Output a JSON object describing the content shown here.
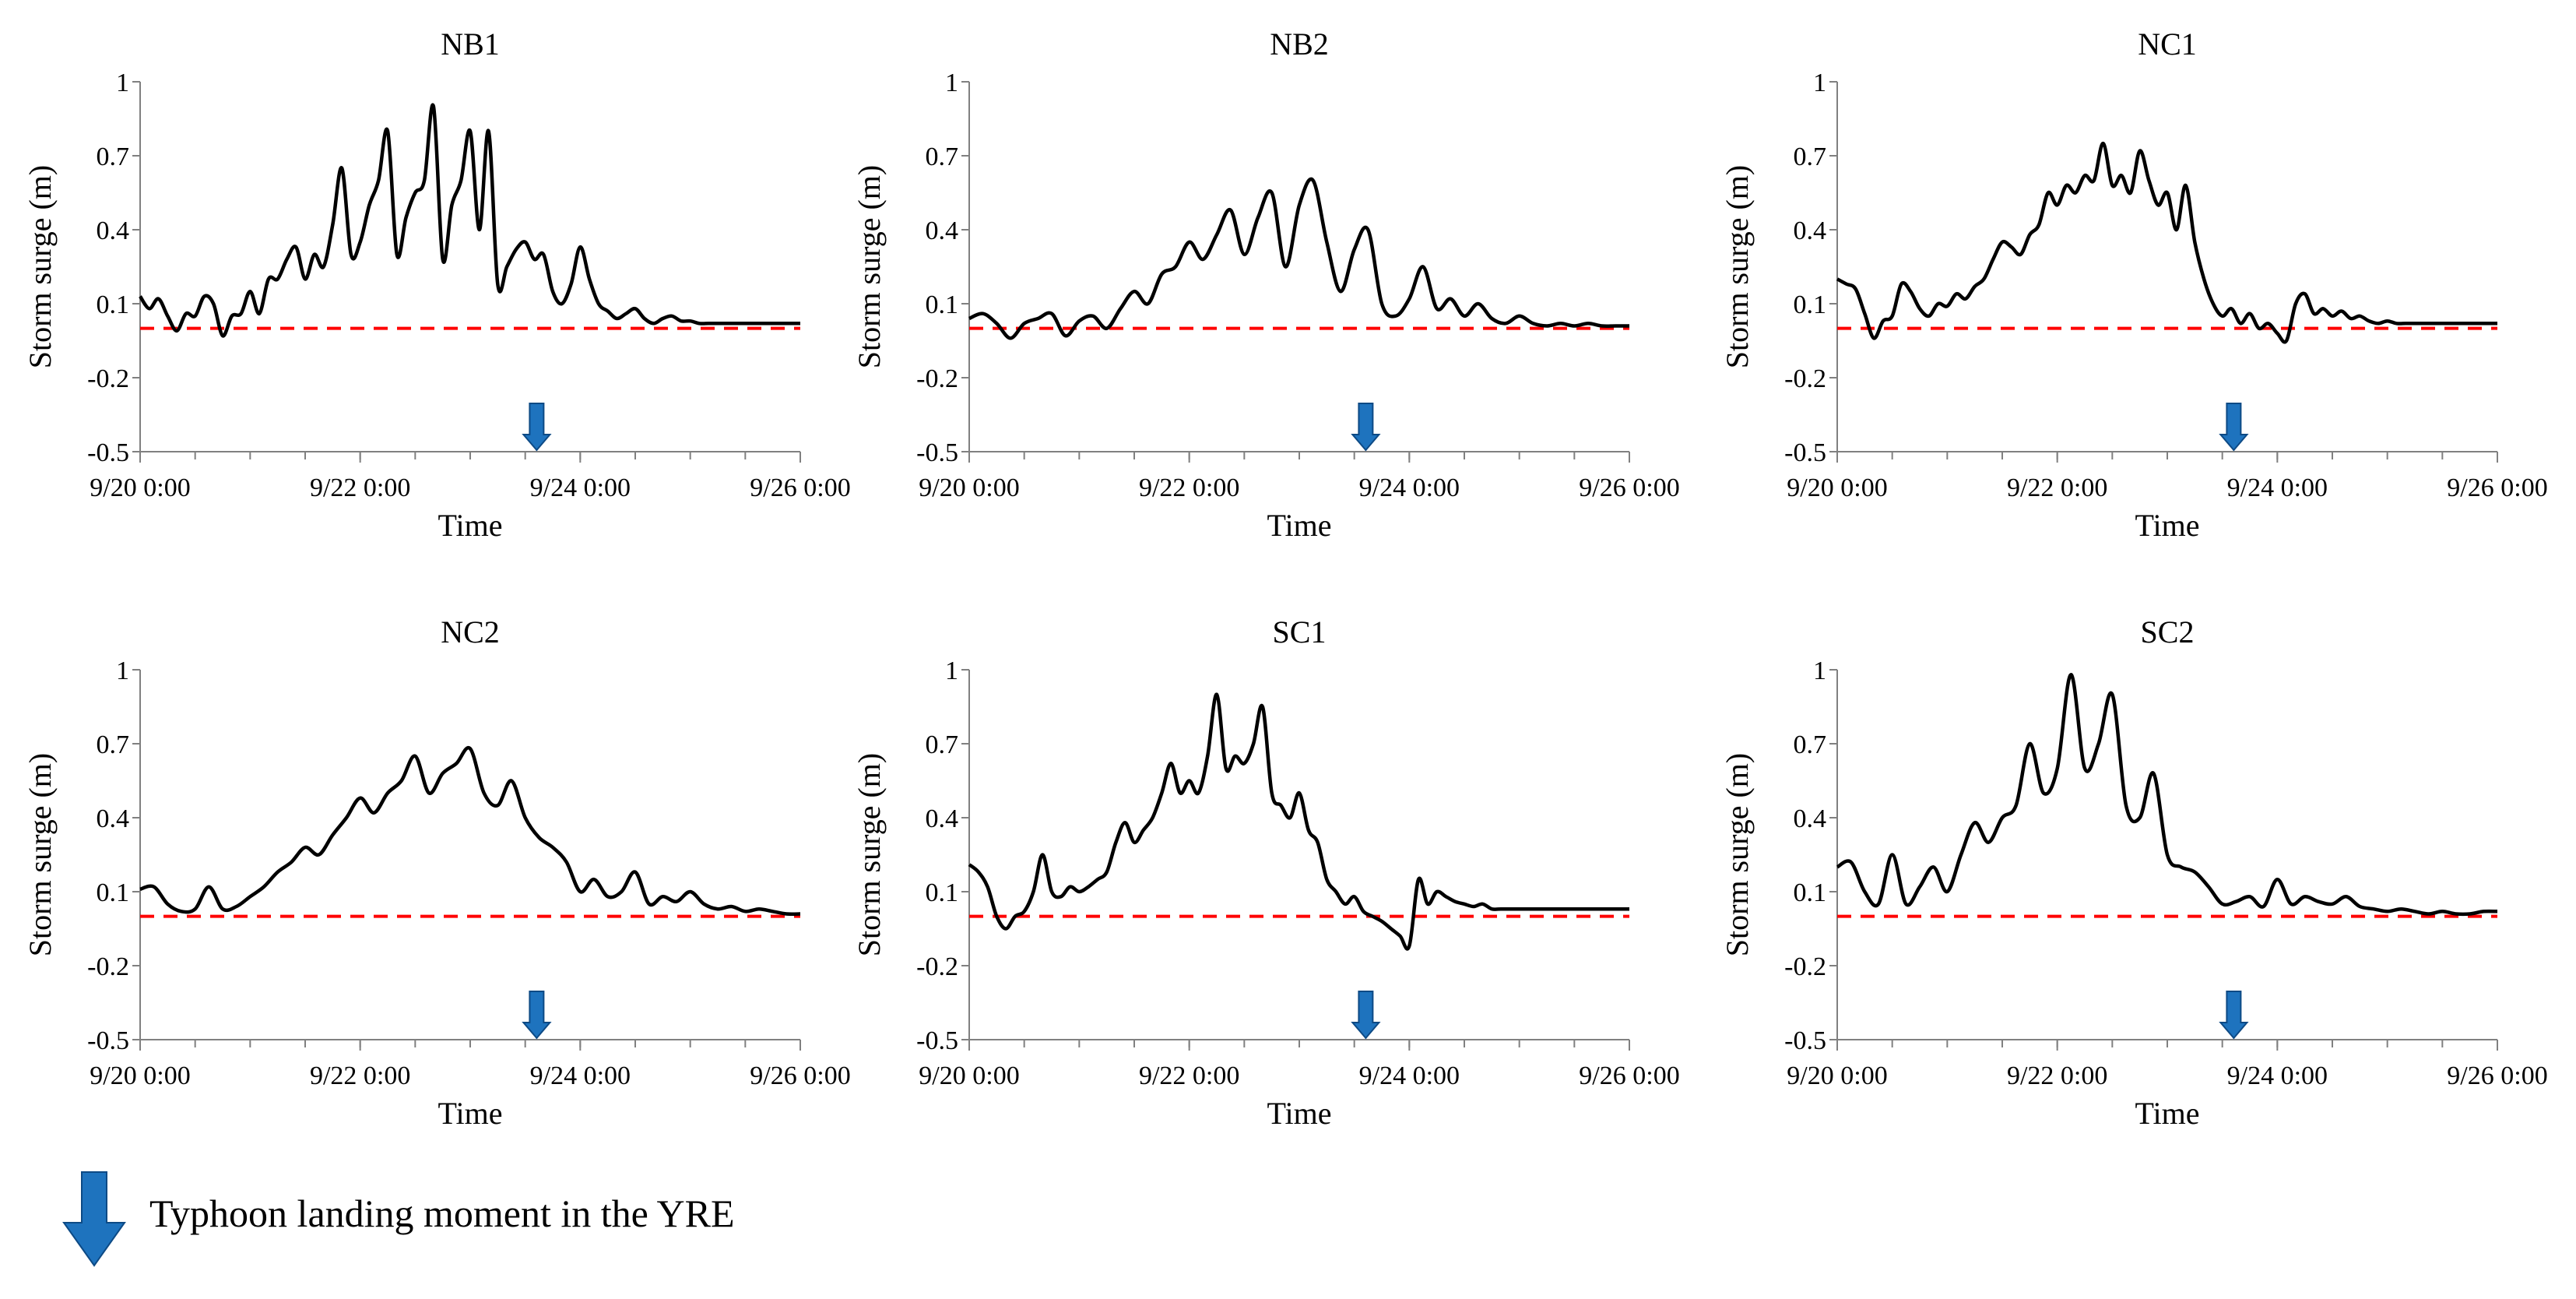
{
  "legend": {
    "arrow_icon": "down-arrow-icon",
    "label": "Typhoon landing moment in the YRE"
  },
  "colors": {
    "series": "#000000",
    "reference_line": "#ff0000",
    "arrow": "#1e73be",
    "arrow_border": "#0d4a85"
  },
  "chart_data": [
    {
      "type": "line",
      "title": "NB1",
      "xlabel": "Time",
      "ylabel": "Storm surge (m)",
      "x_unit": "hours since 9/20 0:00",
      "xlim": [
        0,
        144
      ],
      "ylim": [
        -0.5,
        1
      ],
      "yticks": [
        -0.5,
        -0.2,
        0.1,
        0.4,
        0.7,
        1
      ],
      "ytick_labels": [
        "-0.5",
        "-0.2",
        "0.1",
        "0.4",
        "0.7",
        "1"
      ],
      "xticks": [
        0,
        48,
        96,
        144
      ],
      "xtick_labels": [
        "9/20 0:00",
        "9/22 0:00",
        "9/24 0:00",
        "9/26 0:00"
      ],
      "reference_y": 0.0,
      "landing_x": 86.5,
      "series": [
        {
          "name": "NB1",
          "x": [
            0,
            2,
            4,
            6,
            8,
            10,
            12,
            14,
            16,
            18,
            20,
            22,
            24,
            26,
            28,
            30,
            32,
            34,
            36,
            38,
            40,
            42,
            44,
            46,
            48,
            50,
            52,
            54,
            56,
            58,
            60,
            62,
            64,
            66,
            68,
            70,
            72,
            74,
            76,
            78,
            80,
            82,
            84,
            86,
            88,
            90,
            92,
            94,
            96,
            98,
            100,
            102,
            104,
            106,
            108,
            110,
            112,
            114,
            116,
            118,
            120,
            122,
            124,
            126,
            128,
            130,
            132,
            134,
            136,
            138,
            140,
            142,
            144
          ],
          "y": [
            0.13,
            0.08,
            0.12,
            0.05,
            -0.01,
            0.06,
            0.05,
            0.13,
            0.1,
            -0.03,
            0.05,
            0.06,
            0.15,
            0.06,
            0.2,
            0.2,
            0.28,
            0.33,
            0.2,
            0.3,
            0.25,
            0.42,
            0.65,
            0.3,
            0.35,
            0.5,
            0.6,
            0.8,
            0.3,
            0.45,
            0.55,
            0.6,
            0.9,
            0.28,
            0.5,
            0.6,
            0.8,
            0.4,
            0.8,
            0.18,
            0.25,
            0.32,
            0.35,
            0.28,
            0.3,
            0.15,
            0.1,
            0.18,
            0.33,
            0.2,
            0.1,
            0.07,
            0.04,
            0.06,
            0.08,
            0.04,
            0.02,
            0.04,
            0.05,
            0.03,
            0.03,
            0.02,
            0.02,
            0.02,
            0.02,
            0.02,
            0.02,
            0.02,
            0.02,
            0.02,
            0.02,
            0.02,
            0.02
          ]
        }
      ]
    },
    {
      "type": "line",
      "title": "NB2",
      "xlabel": "Time",
      "ylabel": "Storm surge (m)",
      "x_unit": "hours since 9/20 0:00",
      "xlim": [
        0,
        144
      ],
      "ylim": [
        -0.5,
        1
      ],
      "yticks": [
        -0.5,
        -0.2,
        0.1,
        0.4,
        0.7,
        1
      ],
      "ytick_labels": [
        "-0.5",
        "-0.2",
        "0.1",
        "0.4",
        "0.7",
        "1"
      ],
      "xticks": [
        0,
        48,
        96,
        144
      ],
      "xtick_labels": [
        "9/20 0:00",
        "9/22 0:00",
        "9/24 0:00",
        "9/26 0:00"
      ],
      "reference_y": 0.0,
      "landing_x": 86.5,
      "series": [
        {
          "name": "NB2",
          "x": [
            0,
            3,
            6,
            9,
            12,
            15,
            18,
            21,
            24,
            27,
            30,
            33,
            36,
            39,
            42,
            45,
            48,
            51,
            54,
            57,
            60,
            63,
            66,
            69,
            72,
            75,
            78,
            81,
            84,
            87,
            90,
            93,
            96,
            99,
            102,
            105,
            108,
            111,
            114,
            117,
            120,
            123,
            126,
            129,
            132,
            135,
            138,
            141,
            144
          ],
          "y": [
            0.04,
            0.06,
            0.02,
            -0.04,
            0.02,
            0.04,
            0.06,
            -0.03,
            0.03,
            0.05,
            0.0,
            0.08,
            0.15,
            0.1,
            0.22,
            0.25,
            0.35,
            0.28,
            0.38,
            0.48,
            0.3,
            0.45,
            0.55,
            0.25,
            0.5,
            0.6,
            0.35,
            0.15,
            0.32,
            0.4,
            0.1,
            0.05,
            0.12,
            0.25,
            0.08,
            0.12,
            0.05,
            0.1,
            0.04,
            0.02,
            0.05,
            0.02,
            0.01,
            0.02,
            0.01,
            0.02,
            0.01,
            0.01,
            0.01
          ]
        }
      ]
    },
    {
      "type": "line",
      "title": "NC1",
      "xlabel": "Time",
      "ylabel": "Storm surge (m)",
      "x_unit": "hours since 9/20 0:00",
      "xlim": [
        0,
        144
      ],
      "ylim": [
        -0.5,
        1
      ],
      "yticks": [
        -0.5,
        -0.2,
        0.1,
        0.4,
        0.7,
        1
      ],
      "ytick_labels": [
        "-0.5",
        "-0.2",
        "0.1",
        "0.4",
        "0.7",
        "1"
      ],
      "xticks": [
        0,
        48,
        96,
        144
      ],
      "xtick_labels": [
        "9/20 0:00",
        "9/22 0:00",
        "9/24 0:00",
        "9/26 0:00"
      ],
      "reference_y": 0.0,
      "landing_x": 86.5,
      "series": [
        {
          "name": "NC1",
          "x": [
            0,
            2,
            4,
            6,
            8,
            10,
            12,
            14,
            16,
            18,
            20,
            22,
            24,
            26,
            28,
            30,
            32,
            34,
            36,
            38,
            40,
            42,
            44,
            46,
            48,
            50,
            52,
            54,
            56,
            58,
            60,
            62,
            64,
            66,
            68,
            70,
            72,
            74,
            76,
            78,
            80,
            82,
            84,
            86,
            88,
            90,
            92,
            94,
            96,
            98,
            100,
            102,
            104,
            106,
            108,
            110,
            112,
            114,
            116,
            118,
            120,
            122,
            124,
            126,
            128,
            130,
            132,
            134,
            136,
            138,
            140,
            142,
            144
          ],
          "y": [
            0.2,
            0.18,
            0.16,
            0.06,
            -0.04,
            0.03,
            0.05,
            0.18,
            0.15,
            0.08,
            0.05,
            0.1,
            0.09,
            0.14,
            0.12,
            0.17,
            0.2,
            0.28,
            0.35,
            0.33,
            0.3,
            0.38,
            0.42,
            0.55,
            0.5,
            0.58,
            0.55,
            0.62,
            0.6,
            0.75,
            0.58,
            0.62,
            0.55,
            0.72,
            0.6,
            0.5,
            0.55,
            0.4,
            0.58,
            0.35,
            0.2,
            0.1,
            0.05,
            0.08,
            0.02,
            0.06,
            0.0,
            0.02,
            -0.02,
            -0.05,
            0.1,
            0.14,
            0.06,
            0.08,
            0.05,
            0.07,
            0.04,
            0.05,
            0.03,
            0.02,
            0.03,
            0.02,
            0.02,
            0.02,
            0.02,
            0.02,
            0.02,
            0.02,
            0.02,
            0.02,
            0.02,
            0.02,
            0.02
          ]
        }
      ]
    },
    {
      "type": "line",
      "title": "NC2",
      "xlabel": "Time",
      "ylabel": "Storm surge (m)",
      "x_unit": "hours since 9/20 0:00",
      "xlim": [
        0,
        144
      ],
      "ylim": [
        -0.5,
        1
      ],
      "yticks": [
        -0.5,
        -0.2,
        0.1,
        0.4,
        0.7,
        1
      ],
      "ytick_labels": [
        "-0.5",
        "-0.2",
        "0.1",
        "0.4",
        "0.7",
        "1"
      ],
      "xticks": [
        0,
        48,
        96,
        144
      ],
      "xtick_labels": [
        "9/20 0:00",
        "9/22 0:00",
        "9/24 0:00",
        "9/26 0:00"
      ],
      "reference_y": 0.0,
      "landing_x": 86.5,
      "series": [
        {
          "name": "NC2",
          "x": [
            0,
            3,
            6,
            9,
            12,
            15,
            18,
            21,
            24,
            27,
            30,
            33,
            36,
            39,
            42,
            45,
            48,
            51,
            54,
            57,
            60,
            63,
            66,
            69,
            72,
            75,
            78,
            81,
            84,
            87,
            90,
            93,
            96,
            99,
            102,
            105,
            108,
            111,
            114,
            117,
            120,
            123,
            126,
            129,
            132,
            135,
            138,
            141,
            144
          ],
          "y": [
            0.11,
            0.12,
            0.05,
            0.02,
            0.03,
            0.12,
            0.03,
            0.04,
            0.08,
            0.12,
            0.18,
            0.22,
            0.28,
            0.25,
            0.33,
            0.4,
            0.48,
            0.42,
            0.5,
            0.55,
            0.65,
            0.5,
            0.58,
            0.62,
            0.68,
            0.5,
            0.45,
            0.55,
            0.4,
            0.32,
            0.28,
            0.22,
            0.1,
            0.15,
            0.08,
            0.1,
            0.18,
            0.05,
            0.08,
            0.06,
            0.1,
            0.05,
            0.03,
            0.04,
            0.02,
            0.03,
            0.02,
            0.01,
            0.01
          ]
        }
      ]
    },
    {
      "type": "line",
      "title": "SC1",
      "xlabel": "Time",
      "ylabel": "Storm surge (m)",
      "x_unit": "hours since 9/20 0:00",
      "xlim": [
        0,
        144
      ],
      "ylim": [
        -0.5,
        1
      ],
      "yticks": [
        -0.5,
        -0.2,
        0.1,
        0.4,
        0.7,
        1
      ],
      "ytick_labels": [
        "-0.5",
        "-0.2",
        "0.1",
        "0.4",
        "0.7",
        "1"
      ],
      "xticks": [
        0,
        48,
        96,
        144
      ],
      "xtick_labels": [
        "9/20 0:00",
        "9/22 0:00",
        "9/24 0:00",
        "9/26 0:00"
      ],
      "reference_y": 0.0,
      "landing_x": 86.5,
      "series": [
        {
          "name": "SC1",
          "x": [
            0,
            2,
            4,
            6,
            8,
            10,
            12,
            14,
            16,
            18,
            20,
            22,
            24,
            26,
            28,
            30,
            32,
            34,
            36,
            38,
            40,
            42,
            44,
            46,
            48,
            50,
            52,
            54,
            56,
            58,
            60,
            62,
            64,
            66,
            68,
            70,
            72,
            74,
            76,
            78,
            80,
            82,
            84,
            86,
            88,
            90,
            92,
            94,
            96,
            98,
            100,
            102,
            104,
            106,
            108,
            110,
            112,
            114,
            116,
            118,
            120,
            122,
            124,
            126,
            128,
            130,
            132,
            134,
            136,
            138,
            140,
            142,
            144
          ],
          "y": [
            0.21,
            0.18,
            0.12,
            0.0,
            -0.05,
            0.0,
            0.02,
            0.1,
            0.25,
            0.1,
            0.08,
            0.12,
            0.1,
            0.12,
            0.15,
            0.18,
            0.3,
            0.38,
            0.3,
            0.35,
            0.4,
            0.5,
            0.62,
            0.5,
            0.55,
            0.5,
            0.65,
            0.9,
            0.6,
            0.65,
            0.62,
            0.7,
            0.85,
            0.5,
            0.45,
            0.4,
            0.5,
            0.35,
            0.3,
            0.15,
            0.1,
            0.05,
            0.08,
            0.02,
            0.0,
            -0.02,
            -0.05,
            -0.08,
            -0.12,
            0.15,
            0.05,
            0.1,
            0.08,
            0.06,
            0.05,
            0.04,
            0.05,
            0.03,
            0.03,
            0.03,
            0.03,
            0.03,
            0.03,
            0.03,
            0.03,
            0.03,
            0.03,
            0.03,
            0.03,
            0.03,
            0.03,
            0.03,
            0.03
          ]
        }
      ]
    },
    {
      "type": "line",
      "title": "SC2",
      "xlabel": "Time",
      "ylabel": "Storm surge (m)",
      "x_unit": "hours since 9/20 0:00",
      "xlim": [
        0,
        144
      ],
      "ylim": [
        -0.5,
        1
      ],
      "yticks": [
        -0.5,
        -0.2,
        0.1,
        0.4,
        0.7,
        1
      ],
      "ytick_labels": [
        "-0.5",
        "-0.2",
        "0.1",
        "0.4",
        "0.7",
        "1"
      ],
      "xticks": [
        0,
        48,
        96,
        144
      ],
      "xtick_labels": [
        "9/20 0:00",
        "9/22 0:00",
        "9/24 0:00",
        "9/26 0:00"
      ],
      "reference_y": 0.0,
      "landing_x": 86.5,
      "series": [
        {
          "name": "SC2",
          "x": [
            0,
            3,
            6,
            9,
            12,
            15,
            18,
            21,
            24,
            27,
            30,
            33,
            36,
            39,
            42,
            45,
            48,
            51,
            54,
            57,
            60,
            63,
            66,
            69,
            72,
            75,
            78,
            81,
            84,
            87,
            90,
            93,
            96,
            99,
            102,
            105,
            108,
            111,
            114,
            117,
            120,
            123,
            126,
            129,
            132,
            135,
            138,
            141,
            144
          ],
          "y": [
            0.2,
            0.22,
            0.1,
            0.05,
            0.25,
            0.05,
            0.12,
            0.2,
            0.1,
            0.25,
            0.38,
            0.3,
            0.4,
            0.45,
            0.7,
            0.5,
            0.6,
            0.98,
            0.6,
            0.7,
            0.9,
            0.45,
            0.4,
            0.58,
            0.25,
            0.2,
            0.18,
            0.12,
            0.05,
            0.06,
            0.08,
            0.04,
            0.15,
            0.05,
            0.08,
            0.06,
            0.05,
            0.08,
            0.04,
            0.03,
            0.02,
            0.03,
            0.02,
            0.01,
            0.02,
            0.01,
            0.01,
            0.02,
            0.02
          ]
        }
      ]
    }
  ]
}
